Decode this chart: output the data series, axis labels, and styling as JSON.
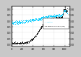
{
  "xlim": [
    0,
    1100
  ],
  "ylim": [
    -0.02,
    0.32
  ],
  "bg_color": "#c8c8c8",
  "plot_bg_color": "#ffffff",
  "cyan_color": "#00ccff",
  "black_color": "#111111",
  "grid_color": "#999999",
  "legend_text1": "f : friction",
  "legend_text2": "Dd: dimension loss (µm)",
  "yticks": [
    0.0,
    0.05,
    0.1,
    0.15,
    0.2,
    0.25,
    0.3
  ],
  "xticks": [
    0,
    200,
    400,
    600,
    800,
    1000
  ]
}
